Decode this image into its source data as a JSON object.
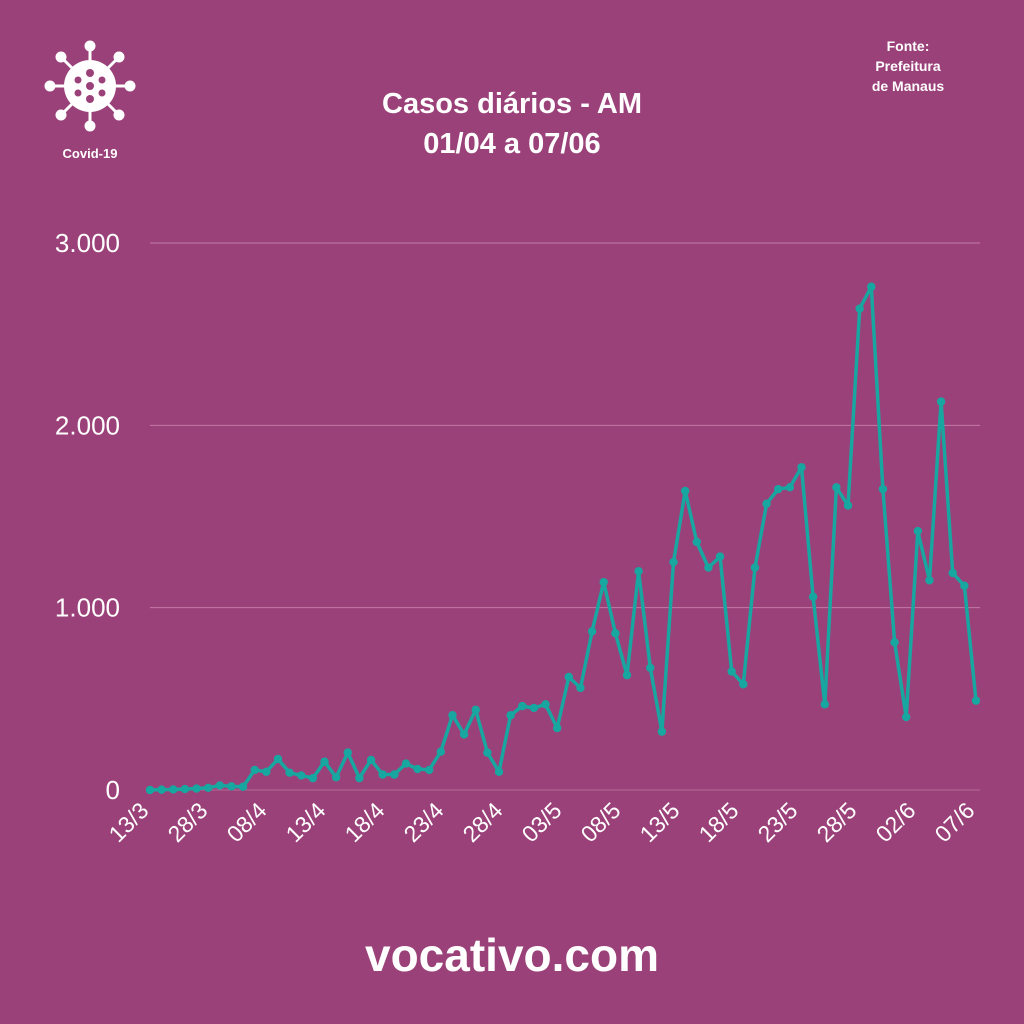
{
  "logo": {
    "label": "Covid-19",
    "icon": "virus-icon"
  },
  "source": {
    "lines": [
      "Fonte:",
      "Prefeitura",
      "de Manaus"
    ]
  },
  "footer": {
    "text": "vocativo.com"
  },
  "colors": {
    "background": "#9b4179",
    "line": "#17a7a0",
    "grid": "#c27aa6",
    "text": "#ffffff"
  },
  "chart_data": {
    "type": "line",
    "title": [
      "Casos diários - AM",
      "01/04 a 07/06"
    ],
    "xlabel": "",
    "ylabel": "",
    "grid": true,
    "legend": "none",
    "ylim": [
      0,
      3000
    ],
    "yticks": [
      0,
      1000,
      2000,
      3000
    ],
    "ytick_labels": [
      "0",
      "1.000",
      "2.000",
      "3.000"
    ],
    "xtick_labels": [
      "13/3",
      "28/3",
      "08/4",
      "13/4",
      "18/4",
      "23/4",
      "28/4",
      "03/5",
      "08/5",
      "13/5",
      "18/5",
      "23/5",
      "28/5",
      "02/6",
      "07/6"
    ],
    "series": [
      {
        "values": [
          0,
          2,
          3,
          5,
          8,
          12,
          25,
          20,
          18,
          110,
          100,
          170,
          95,
          80,
          65,
          155,
          70,
          205,
          65,
          165,
          85,
          85,
          145,
          115,
          110,
          210,
          410,
          305,
          440,
          205,
          100,
          410,
          460,
          450,
          470,
          340,
          620,
          560,
          870,
          1140,
          860,
          630,
          1200,
          670,
          320,
          1250,
          1640,
          1360,
          1220,
          1280,
          650,
          580,
          1220,
          1570,
          1650,
          1660,
          1770,
          1060,
          470,
          1660,
          1560,
          2640,
          2760,
          1650,
          810,
          400,
          1420,
          1150,
          2130,
          1190,
          1120,
          490
        ]
      }
    ]
  }
}
